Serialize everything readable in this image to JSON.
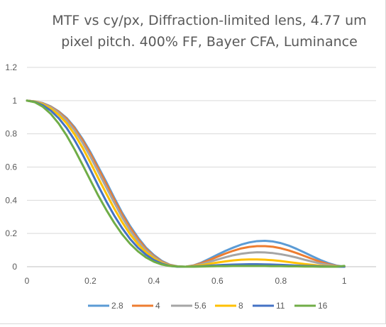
{
  "chart_data": {
    "type": "line",
    "title": "MTF vs cy/px, Diffraction-limited lens, 4.77 um\npixel pitch. 400% FF, Bayer CFA, Luminance",
    "xlabel": "",
    "ylabel": "",
    "xlim": [
      0,
      1.1
    ],
    "ylim": [
      0,
      1.2
    ],
    "x_ticks": [
      0,
      0.2,
      0.4,
      0.6,
      0.8,
      1
    ],
    "y_ticks": [
      0,
      0.2,
      0.4,
      0.6,
      0.8,
      1,
      1.2
    ],
    "x_tick_labels": [
      "0",
      "0.2",
      "0.4",
      "0.6",
      "0.8",
      "1"
    ],
    "y_tick_labels": [
      "0",
      "0.2",
      "0.4",
      "0.6",
      "0.8",
      "1",
      "1.2"
    ],
    "grid": "horizontal",
    "legend_position": "bottom",
    "x": [
      0,
      0.025,
      0.05,
      0.075,
      0.1,
      0.125,
      0.15,
      0.175,
      0.2,
      0.225,
      0.25,
      0.275,
      0.3,
      0.325,
      0.35,
      0.375,
      0.4,
      0.425,
      0.45,
      0.475,
      0.5,
      0.525,
      0.55,
      0.575,
      0.6,
      0.625,
      0.65,
      0.675,
      0.7,
      0.725,
      0.75,
      0.775,
      0.8,
      0.825,
      0.85,
      0.875,
      0.9,
      0.925,
      0.95,
      0.975,
      1.0
    ],
    "series": [
      {
        "name": "2.8",
        "color": "#5b9bd5",
        "values": [
          1.0,
          0.995,
          0.985,
          0.965,
          0.935,
          0.895,
          0.84,
          0.77,
          0.69,
          0.6,
          0.51,
          0.415,
          0.325,
          0.245,
          0.175,
          0.115,
          0.07,
          0.035,
          0.012,
          0.002,
          0.0,
          0.008,
          0.025,
          0.048,
          0.072,
          0.095,
          0.115,
          0.133,
          0.146,
          0.154,
          0.156,
          0.152,
          0.142,
          0.127,
          0.107,
          0.085,
          0.062,
          0.04,
          0.021,
          0.007,
          0.0
        ]
      },
      {
        "name": "4",
        "color": "#ed7d31",
        "values": [
          1.0,
          0.995,
          0.984,
          0.963,
          0.932,
          0.89,
          0.833,
          0.762,
          0.68,
          0.59,
          0.498,
          0.404,
          0.314,
          0.235,
          0.166,
          0.108,
          0.064,
          0.031,
          0.01,
          0.001,
          0.0,
          0.007,
          0.021,
          0.04,
          0.06,
          0.079,
          0.096,
          0.11,
          0.119,
          0.124,
          0.124,
          0.12,
          0.111,
          0.098,
          0.082,
          0.064,
          0.046,
          0.029,
          0.015,
          0.005,
          0.0
        ]
      },
      {
        "name": "5.6",
        "color": "#a5a5a5",
        "values": [
          1.0,
          0.995,
          0.982,
          0.96,
          0.926,
          0.881,
          0.821,
          0.747,
          0.662,
          0.57,
          0.477,
          0.385,
          0.297,
          0.219,
          0.153,
          0.099,
          0.058,
          0.027,
          0.008,
          0.001,
          0.0,
          0.005,
          0.015,
          0.029,
          0.043,
          0.057,
          0.069,
          0.078,
          0.084,
          0.087,
          0.086,
          0.082,
          0.075,
          0.066,
          0.055,
          0.042,
          0.03,
          0.019,
          0.01,
          0.003,
          0.0
        ]
      },
      {
        "name": "8",
        "color": "#ffc000",
        "values": [
          1.0,
          0.994,
          0.978,
          0.952,
          0.914,
          0.863,
          0.797,
          0.717,
          0.627,
          0.532,
          0.44,
          0.35,
          0.268,
          0.195,
          0.135,
          0.087,
          0.05,
          0.023,
          0.007,
          0.001,
          0.0,
          0.003,
          0.009,
          0.017,
          0.025,
          0.032,
          0.038,
          0.042,
          0.044,
          0.044,
          0.042,
          0.039,
          0.034,
          0.028,
          0.022,
          0.016,
          0.011,
          0.006,
          0.003,
          0.001,
          0.0
        ]
      },
      {
        "name": "11",
        "color": "#4472c4",
        "values": [
          1.0,
          0.992,
          0.972,
          0.94,
          0.894,
          0.835,
          0.762,
          0.677,
          0.583,
          0.486,
          0.393,
          0.308,
          0.232,
          0.167,
          0.114,
          0.072,
          0.04,
          0.018,
          0.005,
          0.0,
          0.0,
          0.001,
          0.003,
          0.006,
          0.009,
          0.011,
          0.013,
          0.014,
          0.015,
          0.015,
          0.014,
          0.013,
          0.011,
          0.009,
          0.007,
          0.005,
          0.004,
          0.002,
          0.001,
          0.0,
          0.0
        ]
      },
      {
        "name": "16",
        "color": "#70ad47",
        "values": [
          1.0,
          0.99,
          0.963,
          0.92,
          0.862,
          0.79,
          0.706,
          0.614,
          0.52,
          0.427,
          0.342,
          0.264,
          0.195,
          0.138,
          0.092,
          0.056,
          0.03,
          0.013,
          0.004,
          0.001,
          0.0,
          0.0,
          0.001,
          0.002,
          0.003,
          0.003,
          0.004,
          0.004,
          0.004,
          0.004,
          0.004,
          0.003,
          0.003,
          0.002,
          0.002,
          0.001,
          0.001,
          0.0,
          0.0,
          0.0,
          0.005
        ]
      }
    ]
  }
}
